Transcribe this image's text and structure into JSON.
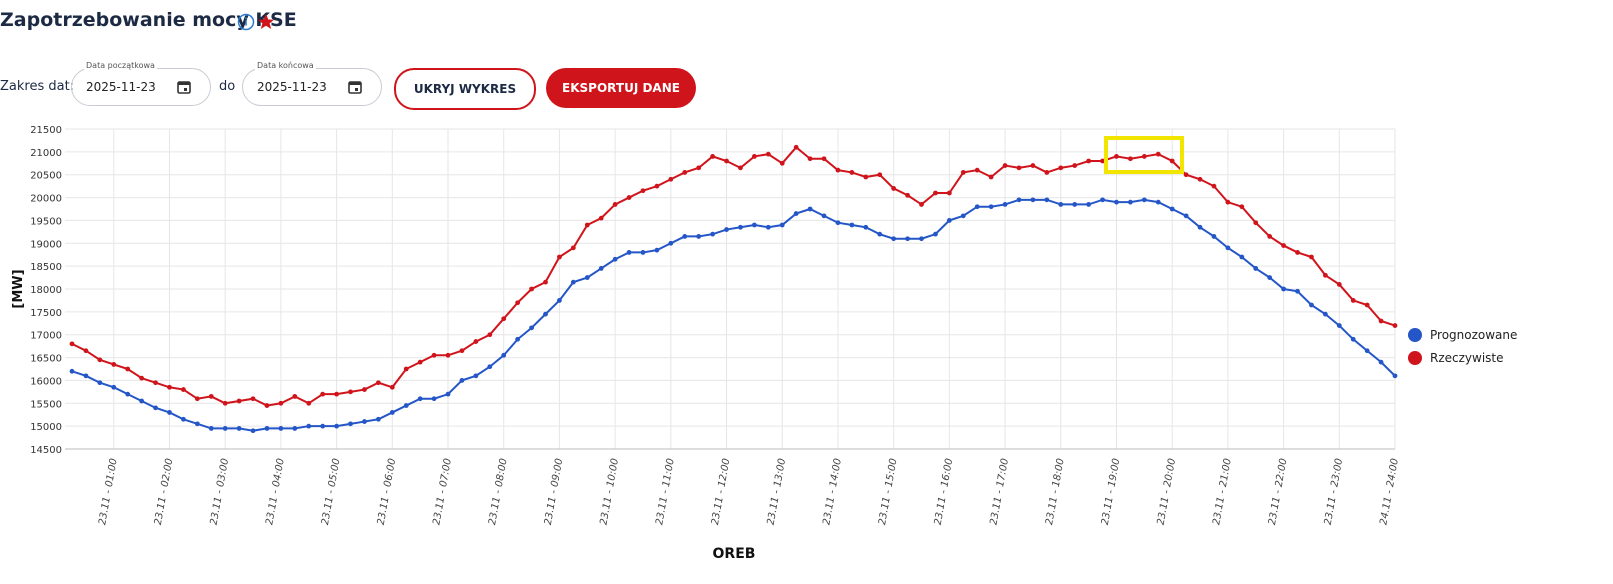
{
  "header": {
    "title": "Zapotrzebowanie mocy KSE"
  },
  "controls": {
    "range_label": "Zakres dat:",
    "start": {
      "label": "Data początkowa",
      "value": "2025-11-23"
    },
    "separator": "do",
    "end": {
      "label": "Data końcowa",
      "value": "2025-11-23"
    },
    "buttons": [
      "UKRYJ WYKRES",
      "EKSPORTUJ DANE"
    ]
  },
  "chart_data": {
    "type": "line",
    "x_label": "OREB",
    "y_label": "[MW]",
    "categories": [
      null,
      null,
      null,
      "23.11 - 01:00",
      null,
      null,
      null,
      "23.11 - 02:00",
      null,
      null,
      null,
      "23.11 - 03:00",
      null,
      null,
      null,
      "23.11 - 04:00",
      null,
      null,
      null,
      "23.11 - 05:00",
      null,
      null,
      null,
      "23.11 - 06:00",
      null,
      null,
      null,
      "23.11 - 07:00",
      null,
      null,
      null,
      "23.11 - 08:00",
      null,
      null,
      null,
      "23.11 - 09:00",
      null,
      null,
      null,
      "23.11 - 10:00",
      null,
      null,
      null,
      "23.11 - 11:00",
      null,
      null,
      null,
      "23.11 - 12:00",
      null,
      null,
      null,
      "23.11 - 13:00",
      null,
      null,
      null,
      "23.11 - 14:00",
      null,
      null,
      null,
      "23.11 - 15:00",
      null,
      null,
      null,
      "23.11 - 16:00",
      null,
      null,
      null,
      "23.11 - 17:00",
      null,
      null,
      null,
      "23.11 - 18:00",
      null,
      null,
      null,
      "23.11 - 19:00",
      null,
      null,
      null,
      "23.11 - 20:00",
      null,
      null,
      null,
      "23.11 - 21:00",
      null,
      null,
      null,
      "23.11 - 22:00",
      null,
      null,
      null,
      "23.11 - 23:00",
      null,
      null,
      null,
      "24.11 - 24:00"
    ],
    "series": [
      {
        "name": "Prognozowane",
        "color": "#2456c8",
        "values": [
          16200,
          16100,
          15950,
          15850,
          15700,
          15550,
          15400,
          15300,
          15150,
          15050,
          14950,
          14950,
          14950,
          14900,
          14950,
          14950,
          14950,
          15000,
          15000,
          15000,
          15050,
          15100,
          15150,
          15300,
          15450,
          15600,
          15600,
          15700,
          16000,
          16100,
          16300,
          16550,
          16900,
          17150,
          17450,
          17750,
          18150,
          18250,
          18450,
          18650,
          18800,
          18800,
          18850,
          19000,
          19150,
          19150,
          19200,
          19300,
          19350,
          19400,
          19350,
          19400,
          19650,
          19750,
          19600,
          19450,
          19400,
          19350,
          19200,
          19100,
          19100,
          19100,
          19200,
          19500,
          19600,
          19800,
          19800,
          19850,
          19950,
          19950,
          19950,
          19850,
          19850,
          19850,
          19950,
          19900,
          19900,
          19950,
          19900,
          19750,
          19600,
          19350,
          19150,
          18900,
          18700,
          18450,
          18250,
          18000,
          17950,
          17650,
          17450,
          17200,
          16900,
          16650,
          16400,
          16100
        ]
      },
      {
        "name": "Rzeczywiste",
        "color": "#d0141b",
        "values": [
          16800,
          16650,
          16450,
          16350,
          16250,
          16050,
          15950,
          15850,
          15800,
          15600,
          15650,
          15500,
          15550,
          15600,
          15450,
          15500,
          15650,
          15500,
          15700,
          15700,
          15750,
          15800,
          15950,
          15850,
          16250,
          16400,
          16550,
          16550,
          16650,
          16850,
          17000,
          17350,
          17700,
          18000,
          18150,
          18700,
          18900,
          19400,
          19550,
          19850,
          20000,
          20150,
          20250,
          20400,
          20550,
          20650,
          20900,
          20800,
          20650,
          20900,
          20950,
          20750,
          21100,
          20850,
          20850,
          20600,
          20550,
          20450,
          20500,
          20200,
          20050,
          19850,
          20100,
          20100,
          20550,
          20600,
          20450,
          20700,
          20650,
          20700,
          20550,
          20650,
          20700,
          20800,
          20800,
          20900,
          20850,
          20900,
          20950,
          20800,
          20500,
          20400,
          20250,
          19900,
          19800,
          19450,
          19150,
          18950,
          18800,
          18700,
          18300,
          18100,
          17750,
          17650,
          17300,
          17200
        ]
      }
    ],
    "ylim": [
      14500,
      21500
    ],
    "yticks": [
      14500,
      15000,
      15500,
      16000,
      16500,
      17000,
      17500,
      18000,
      18500,
      19000,
      19500,
      20000,
      20500,
      21000,
      21500
    ],
    "grid": true
  }
}
